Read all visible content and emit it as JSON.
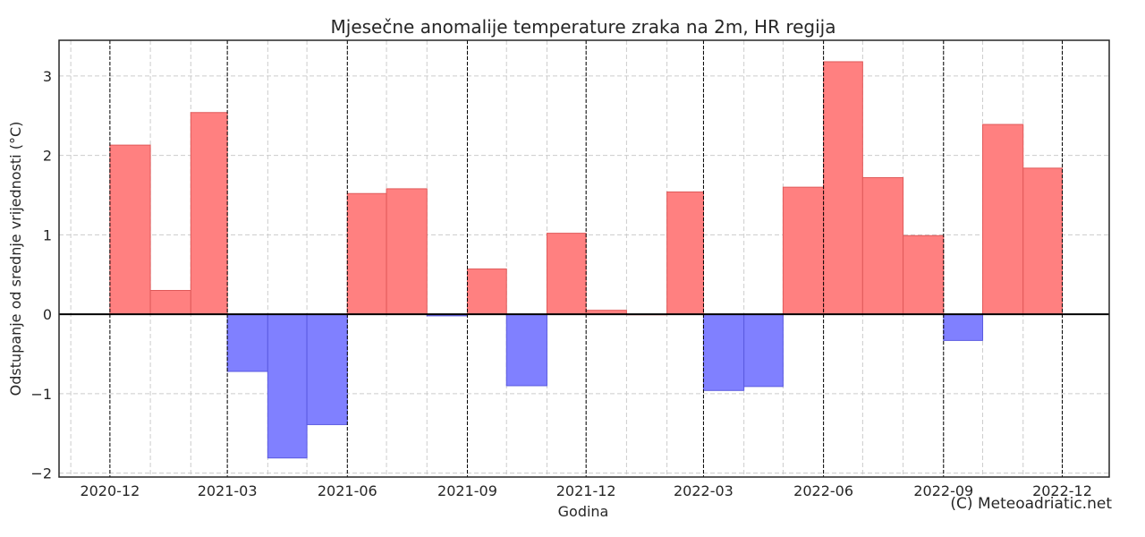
{
  "chart_data": {
    "type": "bar",
    "title": "Mjesečne anomalije temperature zraka na 2m, HR regija",
    "xlabel": "Godina",
    "ylabel": "Odstupanje od srednje vrijednosti (°C)",
    "credit": "(C) Meteoadriatic.net",
    "ylim": [
      -2.05,
      3.45
    ],
    "xlim": [
      "2020-10-23",
      "2023-01-06"
    ],
    "yticks": [
      -2,
      -1,
      0,
      1,
      2,
      3
    ],
    "ytick_labels": [
      "−2",
      "−1",
      "0",
      "1",
      "2",
      "3"
    ],
    "xticks": [
      "2020-12",
      "2021-03",
      "2021-06",
      "2021-09",
      "2021-12",
      "2022-03",
      "2022-06",
      "2022-09",
      "2022-12"
    ],
    "months": [
      "2020-12",
      "2021-01",
      "2021-02",
      "2021-03",
      "2021-04",
      "2021-05",
      "2021-06",
      "2021-07",
      "2021-08",
      "2021-09",
      "2021-10",
      "2021-11",
      "2021-12",
      "2022-01",
      "2022-02",
      "2022-03",
      "2022-04",
      "2022-05",
      "2022-06",
      "2022-07",
      "2022-08",
      "2022-09",
      "2022-10",
      "2022-11"
    ],
    "values": [
      2.13,
      0.3,
      2.54,
      -0.72,
      -1.81,
      -1.39,
      1.52,
      1.58,
      -0.02,
      0.57,
      -0.9,
      1.02,
      0.05,
      0.0,
      1.54,
      -0.96,
      -0.91,
      1.6,
      3.18,
      1.72,
      0.99,
      -0.33,
      2.39,
      1.84
    ],
    "colors": {
      "positive": "#ff8080",
      "positive_edge": "#e05a5a",
      "negative": "#8080ff",
      "negative_edge": "#5a5ae0",
      "zero_line": "#000000",
      "grid": "#cccccc",
      "vline": "#000000"
    },
    "grid": true,
    "quarterly_vlines": true
  }
}
